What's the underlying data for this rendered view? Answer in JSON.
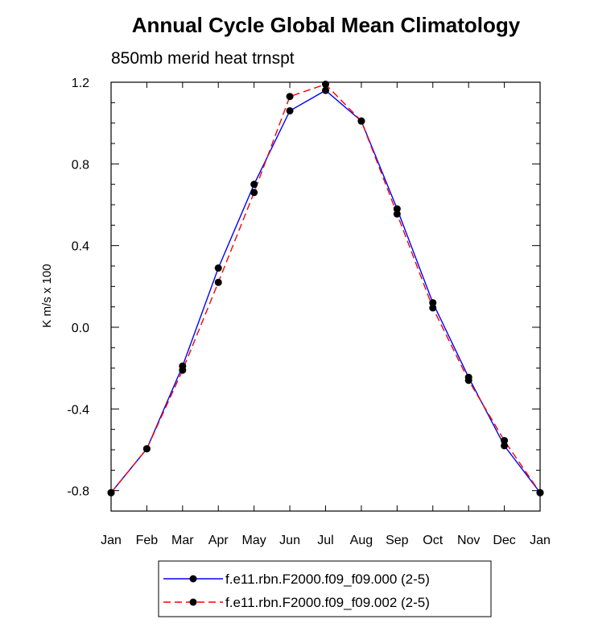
{
  "chart_data": {
    "type": "line",
    "title": "Annual Cycle Global Mean Climatology",
    "subtitle": "850mb merid heat trnspt",
    "xlabel": "",
    "ylabel": "K m/s x 100",
    "categories": [
      "Jan",
      "Feb",
      "Mar",
      "Apr",
      "May",
      "Jun",
      "Jul",
      "Aug",
      "Sep",
      "Oct",
      "Nov",
      "Dec",
      "Jan"
    ],
    "ylim": [
      -0.9,
      1.2
    ],
    "yticks": [
      -0.8,
      -0.4,
      0.0,
      0.4,
      0.8,
      1.2
    ],
    "ytick_labels": [
      "-0.8",
      "-0.4",
      "0.0",
      "0.4",
      "0.8",
      "1.2"
    ],
    "grid": false,
    "legend_position": "bottom-center",
    "series": [
      {
        "name": "f.e11.rbn.F2000.f09_f09.000 (2-5)",
        "color": "#0000ff",
        "dash": "solid",
        "values": [
          -0.81,
          -0.595,
          -0.19,
          0.29,
          0.7,
          1.06,
          1.16,
          1.01,
          0.58,
          0.12,
          -0.245,
          -0.58,
          -0.81
        ]
      },
      {
        "name": "f.e11.rbn.F2000.f09_f09.002 (2-5)",
        "color": "#ff0000",
        "dash": "dashed",
        "values": [
          -0.81,
          -0.595,
          -0.21,
          0.22,
          0.66,
          1.13,
          1.19,
          1.01,
          0.555,
          0.095,
          -0.26,
          -0.555,
          -0.81
        ]
      }
    ]
  }
}
